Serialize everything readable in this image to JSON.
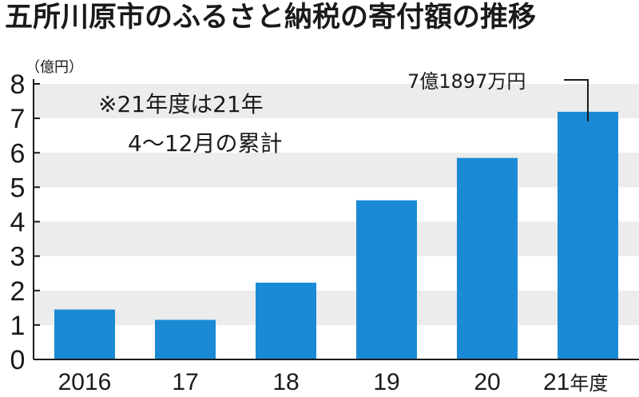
{
  "chart_data": {
    "type": "bar",
    "title": "五所川原市のふるさと納税の寄付額の推移",
    "unit_label": "（億円）",
    "ylim": [
      0,
      8
    ],
    "yticks": [
      0,
      1,
      2,
      3,
      4,
      5,
      6,
      7,
      8
    ],
    "categories": [
      "2016",
      "17",
      "18",
      "19",
      "20",
      "21"
    ],
    "category_suffix": "年度",
    "values": [
      1.45,
      1.15,
      2.23,
      4.62,
      5.85,
      7.19
    ],
    "bar_color": "#1a8ad4",
    "band_color": "#ececec",
    "note_lines": [
      "※21年度は21年",
      "4～12月の累計"
    ],
    "callout": "7億1897万円",
    "grid": "alternating horizontal bands"
  }
}
